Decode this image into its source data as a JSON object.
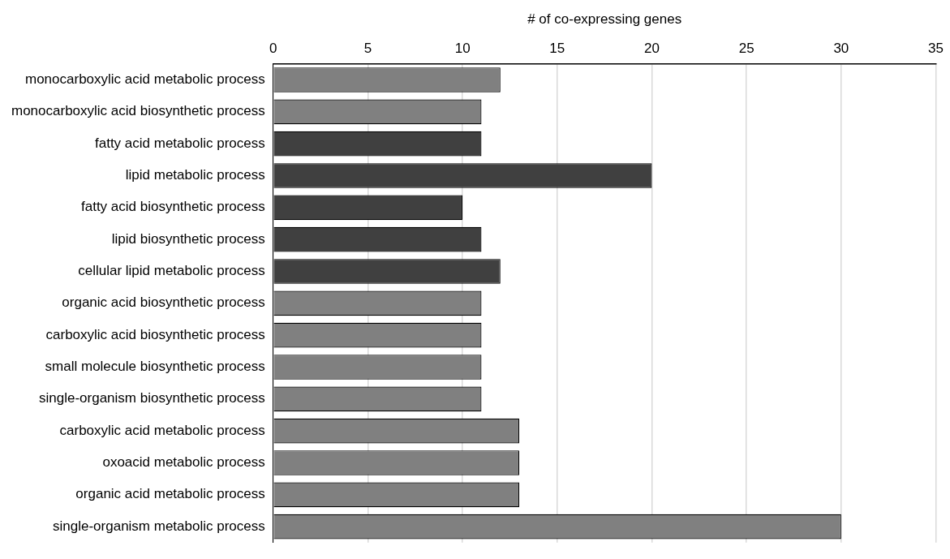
{
  "chart_data": {
    "type": "bar",
    "orientation": "horizontal",
    "xlabel": "# of co-expressing genes",
    "categories": [
      "monocarboxylic acid metabolic process",
      "monocarboxylic acid biosynthetic process",
      "fatty acid metabolic process",
      "lipid metabolic process",
      "fatty acid biosynthetic process",
      "lipid biosynthetic process",
      "cellular lipid metabolic process",
      "organic acid biosynthetic process",
      "carboxylic acid biosynthetic process",
      "small molecule biosynthetic process",
      "single-organism biosynthetic process",
      "carboxylic acid metabolic process",
      "oxoacid metabolic process",
      "organic acid metabolic process",
      "single-organism metabolic process"
    ],
    "values": [
      12,
      11,
      11,
      20,
      10,
      11,
      12,
      11,
      11,
      11,
      11,
      13,
      13,
      13,
      30
    ],
    "colors": [
      "#808080",
      "#808080",
      "#404040",
      "#404040",
      "#404040",
      "#404040",
      "#404040",
      "#808080",
      "#808080",
      "#808080",
      "#808080",
      "#808080",
      "#808080",
      "#808080",
      "#808080"
    ],
    "xlim": [
      0,
      35
    ],
    "xticks": [
      0,
      5,
      10,
      15,
      20,
      25,
      30,
      35
    ],
    "grid": "x",
    "legend": false
  }
}
